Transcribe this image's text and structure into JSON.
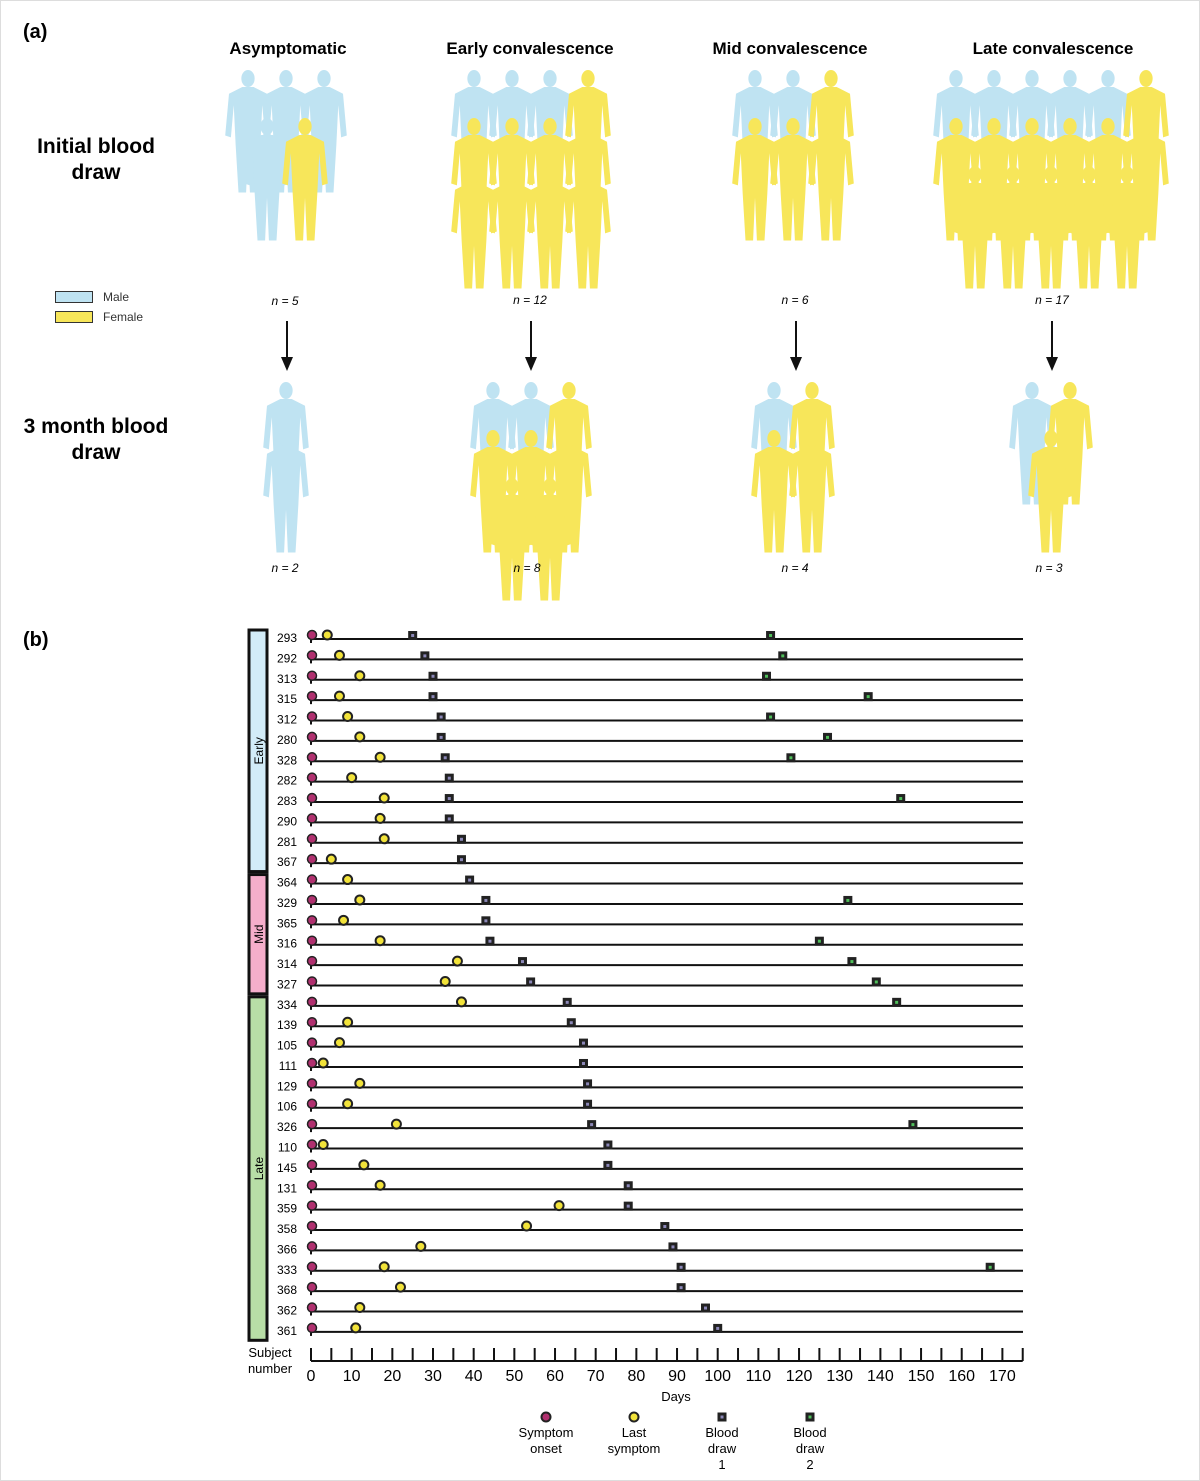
{
  "panel_a": {
    "label": "(a)",
    "columns": [
      "Asymptomatic",
      "Early convalescence",
      "Mid convalescence",
      "Late convalescence"
    ],
    "rows": [
      "Initial blood draw",
      "3 month blood draw"
    ],
    "initial": [
      {
        "n": "n = 5",
        "male": 4,
        "female": 1
      },
      {
        "n": "n = 12",
        "male": 3,
        "female": 9
      },
      {
        "n": "n = 6",
        "male": 2,
        "female": 4
      },
      {
        "n": "n = 17",
        "male": 5,
        "female": 12
      }
    ],
    "three_month": [
      {
        "n": "n = 2",
        "male": 2,
        "female": 0
      },
      {
        "n": "n = 8",
        "male": 2,
        "female": 6
      },
      {
        "n": "n = 4",
        "male": 1,
        "female": 3
      },
      {
        "n": "n = 3",
        "male": 1,
        "female": 2
      }
    ],
    "legend": {
      "male": "Male",
      "female": "Female"
    },
    "colors": {
      "male": "#bfe3f2",
      "female": "#f7e65a"
    }
  },
  "chart_data": {
    "type": "timeline",
    "panel_label": "(b)",
    "xlabel": "Days",
    "ylabel": "Subject number",
    "xlim": [
      0,
      175
    ],
    "xticks": [
      0,
      10,
      20,
      30,
      40,
      50,
      60,
      70,
      80,
      90,
      100,
      110,
      120,
      130,
      140,
      150,
      160,
      170
    ],
    "groups": [
      {
        "name": "Early",
        "color": "#d3ecf8",
        "count": 12
      },
      {
        "name": "Mid",
        "color": "#f5aecb",
        "count": 6
      },
      {
        "name": "Late",
        "color": "#b8dea6",
        "count": 17
      }
    ],
    "legend": [
      {
        "key": "onset",
        "label": "Symptom onset",
        "color": "#b0306f"
      },
      {
        "key": "last",
        "label": "Last symptom",
        "color": "#f2e33a"
      },
      {
        "key": "bd1",
        "label": "Blood draw 1",
        "color": "#55507a"
      },
      {
        "key": "bd2",
        "label": "Blood draw 2",
        "color": "#3f8a48"
      }
    ],
    "subjects": [
      {
        "id": "293",
        "onset": 0,
        "last": 4,
        "bd1": 25,
        "bd2": 113
      },
      {
        "id": "292",
        "onset": 0,
        "last": 7,
        "bd1": 28,
        "bd2": 116
      },
      {
        "id": "313",
        "onset": 0,
        "last": 12,
        "bd1": 30,
        "bd2": 112
      },
      {
        "id": "315",
        "onset": 0,
        "last": 7,
        "bd1": 30,
        "bd2": 137
      },
      {
        "id": "312",
        "onset": 0,
        "last": 9,
        "bd1": 32,
        "bd2": 113
      },
      {
        "id": "280",
        "onset": 0,
        "last": 12,
        "bd1": 32,
        "bd2": 127
      },
      {
        "id": "328",
        "onset": 0,
        "last": 17,
        "bd1": 33,
        "bd2": 118
      },
      {
        "id": "282",
        "onset": 0,
        "last": 10,
        "bd1": 34,
        "bd2": null
      },
      {
        "id": "283",
        "onset": 0,
        "last": 18,
        "bd1": 34,
        "bd2": 145
      },
      {
        "id": "290",
        "onset": 0,
        "last": 17,
        "bd1": 34,
        "bd2": null
      },
      {
        "id": "281",
        "onset": 0,
        "last": 18,
        "bd1": 37,
        "bd2": null
      },
      {
        "id": "367",
        "onset": 0,
        "last": 5,
        "bd1": 37,
        "bd2": null
      },
      {
        "id": "364",
        "onset": 0,
        "last": 9,
        "bd1": 39,
        "bd2": null
      },
      {
        "id": "329",
        "onset": 0,
        "last": 12,
        "bd1": 43,
        "bd2": 132
      },
      {
        "id": "365",
        "onset": 0,
        "last": 8,
        "bd1": 43,
        "bd2": null
      },
      {
        "id": "316",
        "onset": 0,
        "last": 17,
        "bd1": 44,
        "bd2": 125
      },
      {
        "id": "314",
        "onset": 0,
        "last": 36,
        "bd1": 52,
        "bd2": 133
      },
      {
        "id": "327",
        "onset": 0,
        "last": 33,
        "bd1": 54,
        "bd2": 139
      },
      {
        "id": "334",
        "onset": 0,
        "last": 37,
        "bd1": 63,
        "bd2": 144
      },
      {
        "id": "139",
        "onset": 0,
        "last": 9,
        "bd1": 64,
        "bd2": null
      },
      {
        "id": "105",
        "onset": 0,
        "last": 7,
        "bd1": 67,
        "bd2": null
      },
      {
        "id": "111",
        "onset": 0,
        "last": 3,
        "bd1": 67,
        "bd2": null
      },
      {
        "id": "129",
        "onset": 0,
        "last": 12,
        "bd1": 68,
        "bd2": null
      },
      {
        "id": "106",
        "onset": 0,
        "last": 9,
        "bd1": 68,
        "bd2": null
      },
      {
        "id": "326",
        "onset": 0,
        "last": 21,
        "bd1": 69,
        "bd2": 148
      },
      {
        "id": "110",
        "onset": 0,
        "last": 3,
        "bd1": 73,
        "bd2": null
      },
      {
        "id": "145",
        "onset": 0,
        "last": 13,
        "bd1": 73,
        "bd2": null
      },
      {
        "id": "131",
        "onset": 0,
        "last": 17,
        "bd1": 78,
        "bd2": null
      },
      {
        "id": "359",
        "onset": 0,
        "last": 61,
        "bd1": 78,
        "bd2": null
      },
      {
        "id": "358",
        "onset": 0,
        "last": 53,
        "bd1": 87,
        "bd2": null
      },
      {
        "id": "366",
        "onset": 0,
        "last": 27,
        "bd1": 89,
        "bd2": null
      },
      {
        "id": "333",
        "onset": 0,
        "last": 18,
        "bd1": 91,
        "bd2": 167
      },
      {
        "id": "368",
        "onset": 0,
        "last": 22,
        "bd1": 91,
        "bd2": null
      },
      {
        "id": "362",
        "onset": 0,
        "last": 12,
        "bd1": 97,
        "bd2": null
      },
      {
        "id": "361",
        "onset": 0,
        "last": 11,
        "bd1": 100,
        "bd2": null
      }
    ]
  }
}
